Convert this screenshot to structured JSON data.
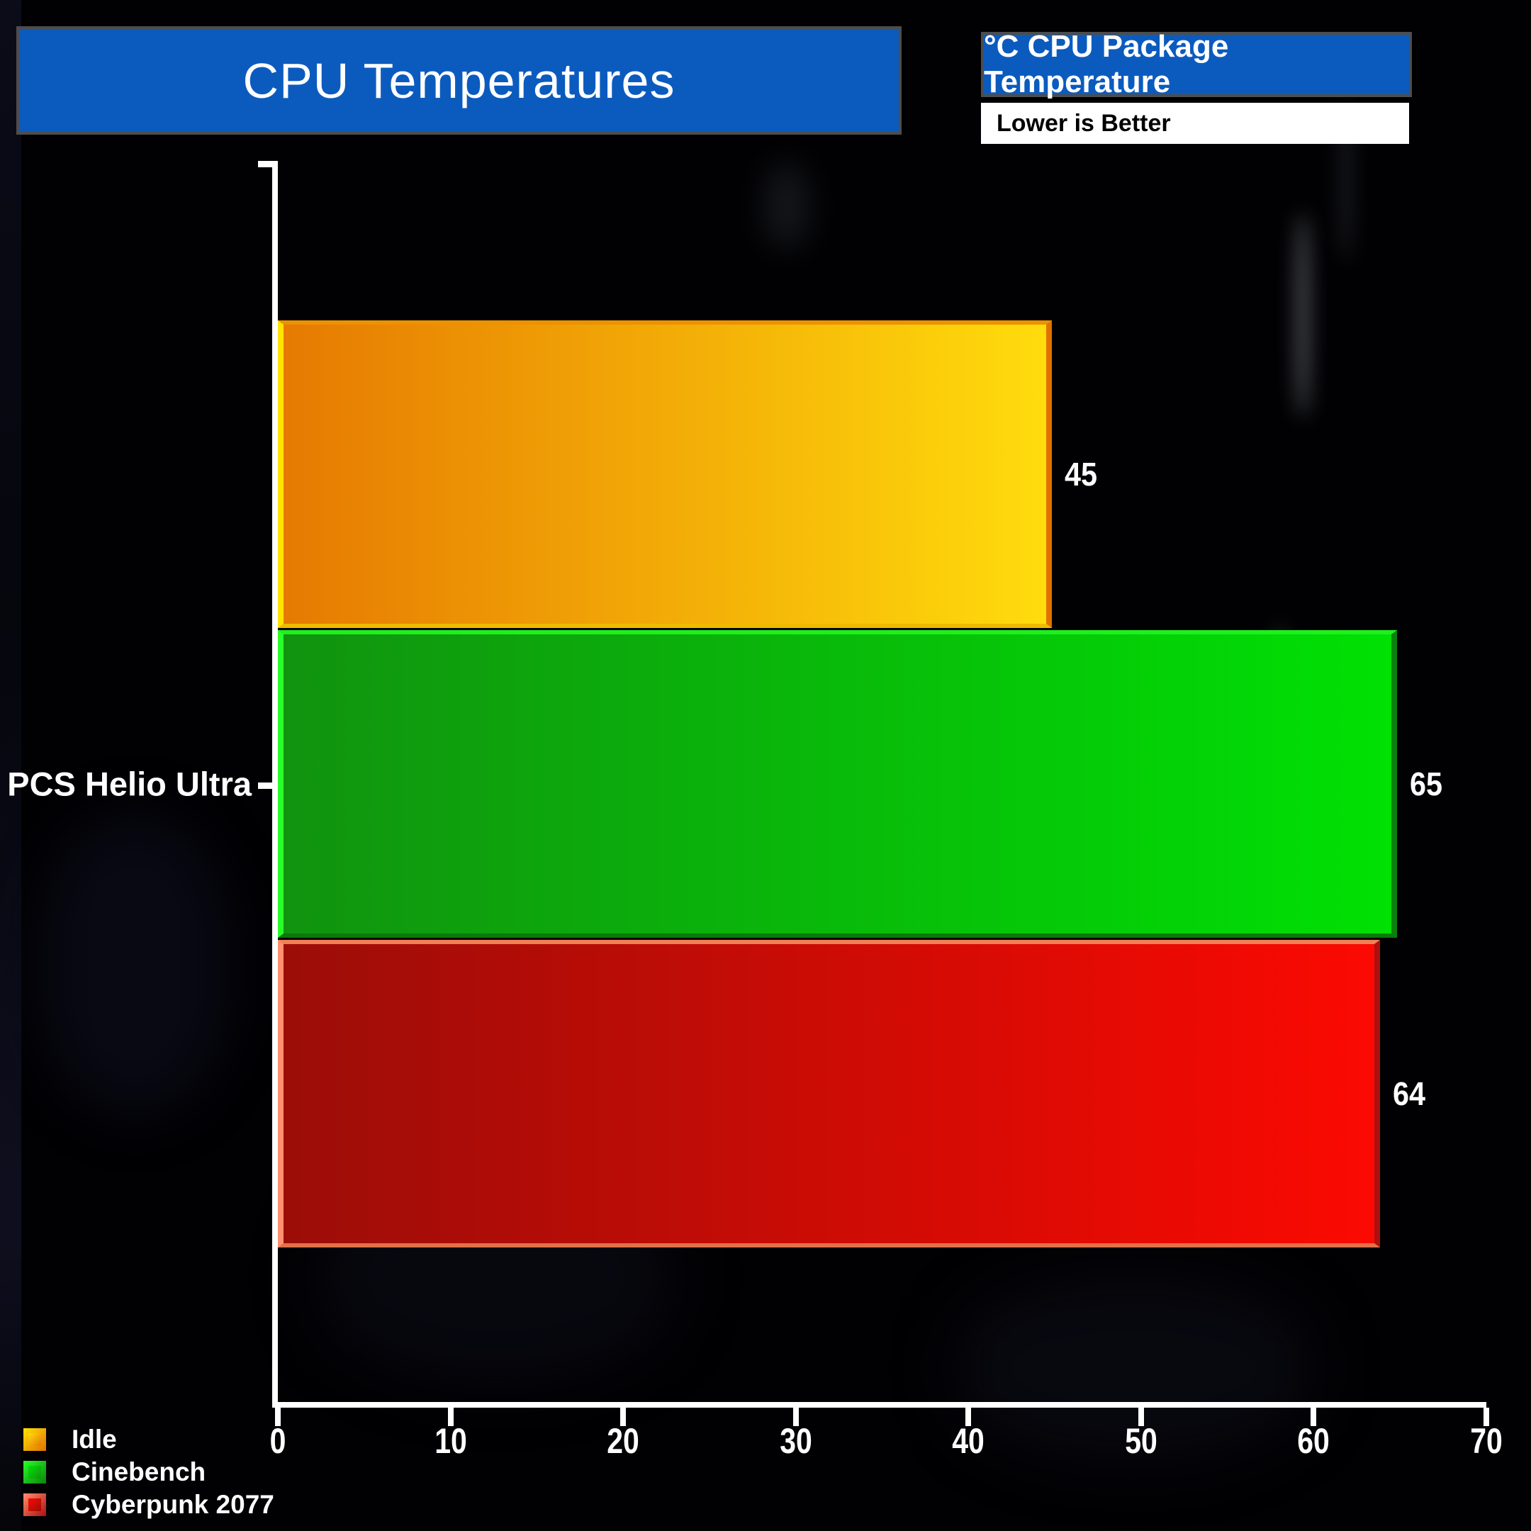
{
  "title": "CPU Temperatures",
  "header": {
    "metric_label": "°C CPU Package Temperature",
    "note": "Lower is Better"
  },
  "chart_data": {
    "type": "bar",
    "orientation": "horizontal",
    "title": "CPU Temperatures",
    "unit": "°C",
    "categories": [
      "PCS Helio Ultra"
    ],
    "series": [
      {
        "name": "Idle",
        "values": [
          45
        ],
        "value_label": "45",
        "fill_from": "#e67a02",
        "fill_to": "#ffdc0c",
        "border": {
          "left": "#ffe400",
          "top": "#ec9200",
          "right": "#e07200",
          "bottom": "#eebb00"
        }
      },
      {
        "name": "Cinebench",
        "values": [
          65
        ],
        "value_label": "65",
        "fill_from": "#11930f",
        "fill_to": "#00e104",
        "border": {
          "left": "#2aff2a",
          "top": "#1ef01e",
          "right": "#0b820b",
          "bottom": "#0a7a0a"
        }
      },
      {
        "name": "Cyberpunk 2077",
        "values": [
          64
        ],
        "value_label": "64",
        "fill_from": "#9c0d08",
        "fill_to": "#fb0a02",
        "border": {
          "left": "#ff9070",
          "top": "#f08055",
          "right": "#ad0f0f",
          "bottom": "#e0714a"
        }
      }
    ],
    "xlabel": "",
    "ylabel": "",
    "xlim": [
      0,
      70
    ],
    "x_ticks": [
      0,
      10,
      20,
      30,
      40,
      50,
      60,
      70
    ],
    "grid": false,
    "legend_position": "bottom-left",
    "axis_color": "#ffffff",
    "banner_color": "#0b5bbf"
  }
}
